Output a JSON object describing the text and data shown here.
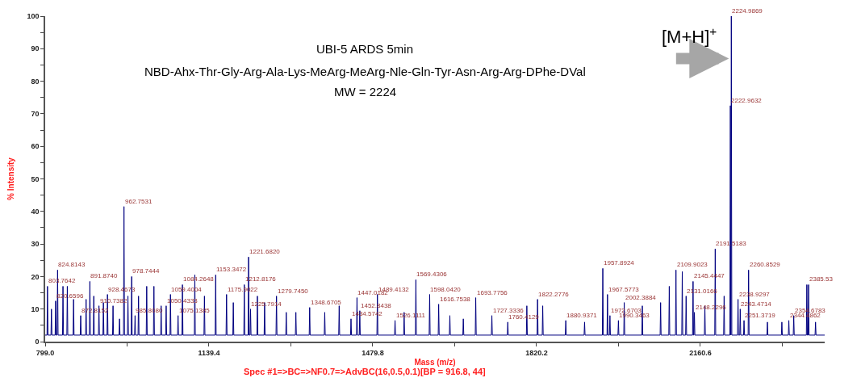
{
  "chart_data": {
    "type": "line",
    "title": "UBI-5 ARDS 5min",
    "subtitle": "NBD-Ahx-Thr-Gly-Arg-Ala-Lys-MeArg-MeArg-Nle-Gln-Tyr-Asn-Arg-Arg-DPhe-DVal",
    "xlabel": "Mass (m/z)",
    "ylabel": "% Intensity",
    "xlim": [
      799.0,
      2419
    ],
    "ylim": [
      0,
      100
    ],
    "xticks": [
      {
        "value": 799.0,
        "label": "799.0"
      },
      {
        "value": 969.2,
        "label": null
      },
      {
        "value": 1139.4,
        "label": "1139.4"
      },
      {
        "value": 1309.6,
        "label": null
      },
      {
        "value": 1479.8,
        "label": "1479.8"
      },
      {
        "value": 1650.0,
        "label": null
      },
      {
        "value": 1820.2,
        "label": "1820.2"
      },
      {
        "value": 1990.4,
        "label": null
      },
      {
        "value": 2160.6,
        "label": "2160.6"
      },
      {
        "value": 2330.8,
        "label": null
      }
    ],
    "yticks": [
      0,
      {
        "value": 5,
        "label": null
      },
      10,
      {
        "value": 15,
        "label": null
      },
      20,
      {
        "value": 25,
        "label": null
      },
      30,
      {
        "value": 35,
        "label": null
      },
      40,
      {
        "value": 45,
        "label": null
      },
      50,
      {
        "value": 55,
        "label": null
      },
      60,
      {
        "value": 65,
        "label": null
      },
      70,
      {
        "value": 75,
        "label": null
      },
      80,
      {
        "value": 85,
        "label": null
      },
      90,
      {
        "value": 95,
        "label": null
      },
      100
    ],
    "series": [
      {
        "color": "#000080",
        "x": [
          799,
          802.8,
          803.7642,
          804.8,
          811,
          812,
          813,
          819.7,
          820.6596,
          821.7,
          823.8,
          824.8143,
          825.8,
          835,
          836,
          837,
          844,
          845,
          846,
          857,
          858,
          859,
          871.8,
          872.8152,
          873.8,
          883,
          884,
          885,
          890.9,
          891.874,
          892.9,
          899,
          900,
          901,
          909.7,
          910.7382,
          911.7,
          919,
          920,
          921,
          927.5,
          928.4673,
          929.5,
          939,
          940,
          941,
          952.5,
          953.5,
          954.5,
          961.8,
          962.7531,
          963.8,
          970,
          971,
          972,
          977.7,
          978.7444,
          979.7,
          984.8,
          985.808,
          986.8,
          992,
          993,
          994,
          1009,
          1010,
          1011,
          1024,
          1025,
          1026,
          1039,
          1040,
          1041,
          1049.4,
          1050.4333,
          1051.4,
          1058.4,
          1059.4004,
          1060.4,
          1074.1,
          1075.1385,
          1076.1,
          1083.3,
          1084.2648,
          1085.3,
          1109,
          1110,
          1111,
          1129,
          1130,
          1131,
          1152.3,
          1153.3472,
          1154.3,
          1174.9,
          1175.9022,
          1176.9,
          1189,
          1190,
          1191,
          1211.8,
          1212.8176,
          1213.8,
          1220.7,
          1221.682,
          1222.7,
          1224.8,
          1225.7914,
          1226.8,
          1239,
          1240,
          1241,
          1254,
          1255,
          1256,
          1278.7,
          1279.745,
          1280.7,
          1299,
          1300,
          1301,
          1319,
          1320,
          1321,
          1347.7,
          1348.6705,
          1349.7,
          1379,
          1380,
          1381,
          1409,
          1410,
          1411,
          1433.6,
          1434.5742,
          1435.6,
          1446,
          1447.0182,
          1448,
          1451.8,
          1452.8438,
          1453.8,
          1488.4,
          1489.4132,
          1490.4,
          1525.1,
          1526.1111,
          1527.1,
          1544,
          1545,
          1546,
          1568.4,
          1569.4306,
          1570.4,
          1597,
          1598.042,
          1599,
          1615.8,
          1616.7538,
          1617.8,
          1639,
          1640,
          1641,
          1667,
          1668,
          1669,
          1692.8,
          1693.7756,
          1694.8,
          1726.3,
          1727.3336,
          1728.3,
          1759.4,
          1760.4129,
          1761.4,
          1799,
          1800,
          1801,
          1821.3,
          1822.2776,
          1823.3,
          1832,
          1833,
          1834,
          1879.9,
          1880.9371,
          1881.9,
          1919,
          1920,
          1921,
          1956.9,
          1957.8924,
          1958.9,
          1966.6,
          1967.5773,
          1968.6,
          1971.7,
          1972.6703,
          1973.7,
          1989.3,
          1990.3463,
          1991.3,
          2001.4,
          2002.3884,
          2003.4,
          2039,
          2040,
          2041,
          2077,
          2078,
          2079,
          2095,
          2096,
          2097,
          2108.9,
          2109.9023,
          2110.9,
          2122,
          2123,
          2124,
          2130,
          2131.0166,
          2132,
          2144.4,
          2145.4447,
          2146.4,
          2147.2,
          2148.2296,
          2149.2,
          2169,
          2170,
          2171,
          2190.5,
          2191.5183,
          2192.5,
          2209,
          2210,
          2211,
          2222,
          2222.9632,
          2223.9,
          2224.0,
          2224.9869,
          2226,
          2237.9,
          2238.9297,
          2239.9,
          2242.5,
          2243.4714,
          2244.5,
          2250.4,
          2251.3719,
          2252.4,
          2259.9,
          2260.8529,
          2261.9,
          2299,
          2300,
          2301,
          2329,
          2330,
          2331,
          2343.5,
          2344.4862,
          2345.5,
          2353.7,
          2354.6783,
          2355.7,
          2380.9,
          2381.9,
          2382.9,
          2384.5,
          2385.53,
          2386.5,
          2399,
          2400,
          2401,
          2419
        ],
        "values": [
          2,
          2,
          17,
          2,
          2,
          10,
          2,
          2,
          12.5,
          2,
          2,
          22,
          2,
          2,
          17,
          2,
          2,
          17,
          2,
          2,
          13,
          2,
          2,
          8,
          2,
          2,
          13,
          2,
          2,
          18.5,
          2,
          2,
          14,
          2,
          2,
          11,
          2,
          2,
          12,
          2,
          2,
          14.5,
          2,
          2,
          11,
          2,
          2,
          7,
          2,
          2,
          41.5,
          2,
          2,
          14,
          2,
          2,
          20,
          2,
          2,
          8,
          2,
          2,
          14,
          2,
          2,
          17,
          2,
          2,
          17,
          2,
          2,
          11,
          2,
          2,
          11,
          2,
          2,
          14.5,
          2,
          2,
          8,
          2,
          2,
          17.5,
          2,
          2,
          20.5,
          2,
          2,
          14,
          2,
          2,
          20.5,
          2,
          2,
          14.5,
          2,
          2,
          12,
          2,
          2,
          17.5,
          2,
          2,
          26,
          2,
          2,
          10,
          2,
          2,
          14,
          2,
          2,
          12,
          2,
          2,
          14,
          2,
          2,
          9,
          2,
          2,
          9,
          2,
          2,
          10.5,
          2,
          2,
          9,
          2,
          2,
          11,
          2,
          2,
          7,
          2,
          2,
          13.5,
          2,
          2,
          9.5,
          2,
          2,
          14.5,
          2,
          2,
          6.5,
          2,
          2,
          9,
          2,
          2,
          19,
          2,
          2,
          14.5,
          2,
          2,
          11.5,
          2,
          2,
          8,
          2,
          2,
          7,
          2,
          2,
          13.5,
          2,
          2,
          8,
          2,
          2,
          6,
          2,
          2,
          11,
          2,
          2,
          13,
          2,
          2,
          11,
          2,
          2,
          6.5,
          2,
          2,
          6,
          2,
          2,
          22.5,
          2,
          2,
          14.5,
          2,
          2,
          8,
          2,
          2,
          6.5,
          2,
          2,
          12,
          2,
          2,
          11,
          2,
          2,
          12,
          2,
          2,
          17,
          2,
          2,
          22,
          2,
          2,
          21.5,
          2,
          2,
          14,
          2,
          2,
          18.5,
          2,
          2,
          9,
          2,
          2,
          11,
          2,
          2,
          28.5,
          2,
          2,
          14,
          2,
          2,
          72.5,
          2,
          2,
          100,
          2,
          2,
          13,
          2,
          2,
          10,
          2,
          2,
          6.5,
          2,
          2,
          22,
          2,
          2,
          6,
          2,
          2,
          6,
          2,
          2,
          6.5,
          2,
          2,
          8,
          2,
          2,
          17.5,
          2,
          2,
          17.5,
          2,
          2,
          6,
          2,
          2
        ]
      }
    ],
    "annotations": [
      "MW = 2224",
      "Spec #1=>BC=>NF0.7=>AdvBC(16,0.5,0.1)[BP = 916.8, 44]",
      {
        "text": "[M+H]$^{+}$",
        "x": 2224.9869,
        "y": 87
      },
      {
        "text": "803.7642",
        "x": 803.7642,
        "y": 17
      },
      {
        "text": "820.6596",
        "x": 820.6596,
        "y": 12.5
      },
      {
        "text": "824.8143",
        "x": 824.8143,
        "y": 22
      },
      {
        "text": "872.8152",
        "x": 872.8152,
        "y": 8
      },
      {
        "text": "891.8740",
        "x": 891.874,
        "y": 18.5
      },
      {
        "text": "910.7382",
        "x": 910.7382,
        "y": 11
      },
      {
        "text": "928.4673",
        "x": 928.4673,
        "y": 14.5
      },
      {
        "text": "962.7531",
        "x": 962.7531,
        "y": 41.5
      },
      {
        "text": "978.7444",
        "x": 978.7444,
        "y": 20
      },
      {
        "text": "985.8080",
        "x": 985.808,
        "y": 8
      },
      {
        "text": "1050.4333",
        "x": 1050.4333,
        "y": 11
      },
      {
        "text": "1059.4004",
        "x": 1059.4004,
        "y": 14.5
      },
      {
        "text": "1075.1385",
        "x": 1075.1385,
        "y": 8
      },
      {
        "text": "1084.2648",
        "x": 1084.2648,
        "y": 17.5
      },
      {
        "text": "1153.3472",
        "x": 1153.3472,
        "y": 20.5
      },
      {
        "text": "1175.9022",
        "x": 1175.9022,
        "y": 14.5
      },
      {
        "text": "1212.8176",
        "x": 1212.8176,
        "y": 17.5
      },
      {
        "text": "1221.6820",
        "x": 1221.682,
        "y": 26
      },
      {
        "text": "1225.7914",
        "x": 1225.7914,
        "y": 10
      },
      {
        "text": "1279.7450",
        "x": 1279.745,
        "y": 14
      },
      {
        "text": "1348.6705",
        "x": 1348.6705,
        "y": 10.5
      },
      {
        "text": "1434.5742",
        "x": 1434.5742,
        "y": 7
      },
      {
        "text": "1447.0182",
        "x": 1447.0182,
        "y": 13.5
      },
      {
        "text": "1452.8438",
        "x": 1452.8438,
        "y": 9.5
      },
      {
        "text": "1489.4132",
        "x": 1489.4132,
        "y": 14.5
      },
      {
        "text": "1526.1111",
        "x": 1526.1111,
        "y": 6.5
      },
      {
        "text": "1569.4306",
        "x": 1569.4306,
        "y": 19
      },
      {
        "text": "1598.0420",
        "x": 1598.042,
        "y": 14.5
      },
      {
        "text": "1616.7538",
        "x": 1616.7538,
        "y": 11.5
      },
      {
        "text": "1693.7756",
        "x": 1693.7756,
        "y": 13.5
      },
      {
        "text": "1727.3336",
        "x": 1727.3336,
        "y": 8
      },
      {
        "text": "1760.4129",
        "x": 1760.4129,
        "y": 6
      },
      {
        "text": "1822.2776",
        "x": 1822.2776,
        "y": 13
      },
      {
        "text": "1880.9371",
        "x": 1880.9371,
        "y": 6.5
      },
      {
        "text": "1957.8924",
        "x": 1957.8924,
        "y": 22.5
      },
      {
        "text": "1967.5773",
        "x": 1967.5773,
        "y": 14.5
      },
      {
        "text": "1972.6703",
        "x": 1972.6703,
        "y": 8
      },
      {
        "text": "1990.3463",
        "x": 1990.3463,
        "y": 6.5
      },
      {
        "text": "2002.3884",
        "x": 2002.3884,
        "y": 12
      },
      {
        "text": "2109.9023",
        "x": 2109.9023,
        "y": 22
      },
      {
        "text": "2131.0166",
        "x": 2131.0166,
        "y": 14
      },
      {
        "text": "2145.4447",
        "x": 2145.4447,
        "y": 18.5
      },
      {
        "text": "2148.2296",
        "x": 2148.2296,
        "y": 9
      },
      {
        "text": "2191.5183",
        "x": 2191.5183,
        "y": 28.5
      },
      {
        "text": "2222.9632",
        "x": 2222.9632,
        "y": 72.5
      },
      {
        "text": "2224.9869",
        "x": 2224.9869,
        "y": 100
      },
      {
        "text": "2238.9297",
        "x": 2238.9297,
        "y": 13
      },
      {
        "text": "2243.4714",
        "x": 2243.4714,
        "y": 10
      },
      {
        "text": "2251.3719",
        "x": 2251.3719,
        "y": 6.5
      },
      {
        "text": "2260.8529",
        "x": 2260.8529,
        "y": 22
      },
      {
        "text": "2344.4862",
        "x": 2344.4862,
        "y": 6.5
      },
      {
        "text": "2354.6783",
        "x": 2354.6783,
        "y": 8
      },
      {
        "text": "2385.53",
        "x": 2385.53,
        "y": 17.5
      }
    ]
  }
}
